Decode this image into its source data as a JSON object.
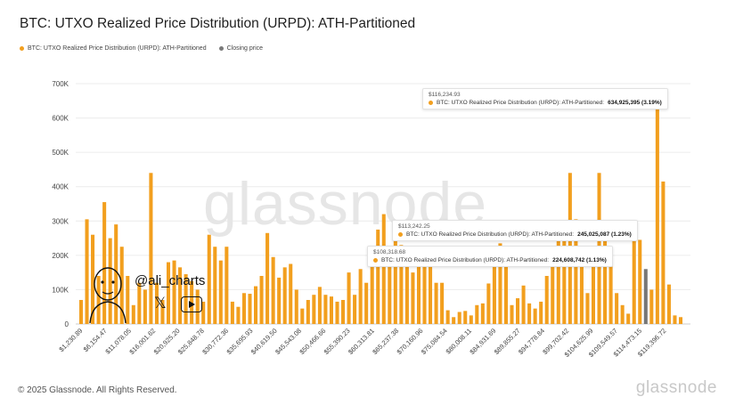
{
  "title": "BTC: UTXO Realized Price Distribution (URPD): ATH-Partitioned",
  "legend": [
    {
      "label": "BTC: UTXO Realized Price Distribution (URPD): ATH-Partitioned",
      "color": "#f29f1e"
    },
    {
      "label": "Closing price",
      "color": "#7a7a7a"
    }
  ],
  "footer": "© 2025 Glassnode. All Rights Reserved.",
  "brand": "glassnode",
  "watermark": "glassnode",
  "handle": "@ali_charts",
  "colors": {
    "bar": "#f29f1e",
    "closing": "#777777",
    "grid": "#ececec"
  },
  "tooltips": [
    {
      "price": "$116,234.93",
      "series": "BTC: UTXO Realized Price Distribution (URPD): ATH-Partitioned:",
      "value": "634,925,395 (3.19%)"
    },
    {
      "price": "$113,242.25",
      "series": "BTC: UTXO Realized Price Distribution (URPD): ATH-Partitioned:",
      "value": "245,025,087 (1.23%)"
    },
    {
      "price": "$108,318.68",
      "series": "BTC: UTXO Realized Price Distribution (URPD): ATH-Partitioned:",
      "value": "224,608,742 (1.13%)"
    }
  ],
  "chart_data": {
    "type": "bar",
    "title": "BTC: UTXO Realized Price Distribution (URPD): ATH-Partitioned",
    "ylim": [
      0,
      700000
    ],
    "y_ticks": [
      "0",
      "100K",
      "200K",
      "300K",
      "400K",
      "500K",
      "600K",
      "700K"
    ],
    "x_tick_labels": [
      "$1,230.89",
      "$6,154.47",
      "$11,078.05",
      "$16,001.62",
      "$20,925.20",
      "$25,848.78",
      "$30,772.36",
      "$35,695.93",
      "$40,619.50",
      "$45,543.08",
      "$50,466.66",
      "$55,390.23",
      "$60,313.81",
      "$65,237.38",
      "$70,160.96",
      "$75,084.54",
      "$80,008.11",
      "$84,931.69",
      "$89,855.27",
      "$94,778.84",
      "$99,702.42",
      "$104,625.99",
      "$109,549.57",
      "$114,473.15",
      "$119,396.72"
    ],
    "grid": true,
    "legend_position": "top-left",
    "closing_price_index": 97,
    "values": [
      70000,
      305000,
      260000,
      140000,
      355000,
      250000,
      290000,
      225000,
      140000,
      55000,
      120000,
      100000,
      440000,
      120000,
      70000,
      180000,
      185000,
      165000,
      145000,
      125000,
      100000,
      65000,
      260000,
      225000,
      185000,
      225000,
      65000,
      50000,
      90000,
      88000,
      110000,
      140000,
      265000,
      195000,
      135000,
      165000,
      175000,
      100000,
      45000,
      70000,
      85000,
      108000,
      85000,
      80000,
      65000,
      70000,
      150000,
      85000,
      160000,
      120000,
      200000,
      275000,
      320000,
      220000,
      255000,
      230000,
      175000,
      150000,
      225000,
      220000,
      175000,
      120000,
      120000,
      40000,
      20000,
      35000,
      38000,
      25000,
      55000,
      60000,
      118000,
      200000,
      235000,
      200000,
      55000,
      75000,
      112000,
      60000,
      45000,
      65000,
      140000,
      220000,
      245000,
      300000,
      440000,
      305000,
      200000,
      90000,
      215000,
      440000,
      270000,
      210000,
      90000,
      55000,
      30000,
      265000,
      245000,
      160000,
      100000,
      635000,
      415000,
      115000,
      25000,
      20000
    ]
  }
}
